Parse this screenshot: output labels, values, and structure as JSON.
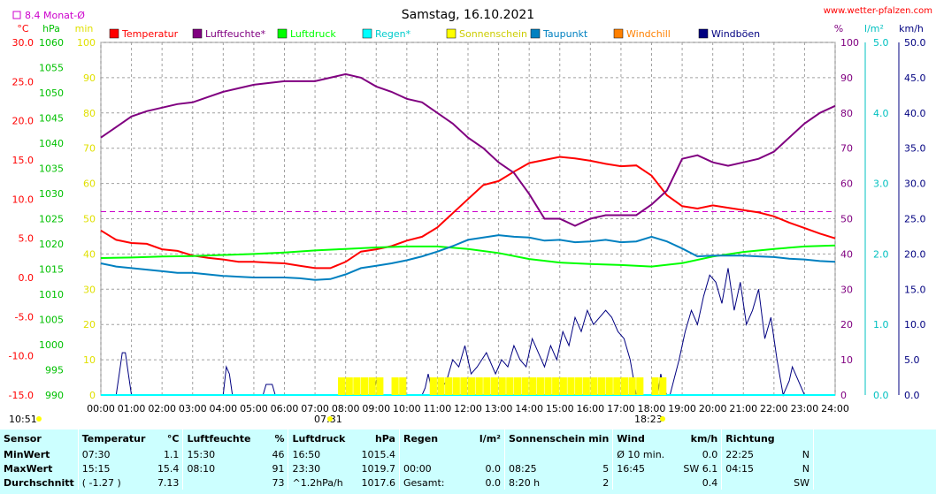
{
  "header": {
    "title": "Samstag, 16.10.2021",
    "site": "www.wetter-pfalzen.com",
    "monthly_avg_label": "8.4 Monat-Ø",
    "time_marker_left": "10:51",
    "sunrise": "07:31",
    "sunset": "18:23"
  },
  "legend": [
    {
      "name": "Temperatur",
      "color": "#ff0000"
    },
    {
      "name": "Luftfeuchte*",
      "color": "#800080"
    },
    {
      "name": "Luftdruck",
      "color": "#00ff00"
    },
    {
      "name": "Regen*",
      "color": "#00ffff"
    },
    {
      "name": "Sonnenschein",
      "color": "#ffff00"
    },
    {
      "name": "Taupunkt",
      "color": "#0080c0"
    },
    {
      "name": "Windchill",
      "color": "#ff8000"
    },
    {
      "name": "Windböen",
      "color": "#000080"
    }
  ],
  "axes": {
    "temp": {
      "unit": "°C",
      "color": "#ff0000",
      "ticks": [
        "30.0",
        "25.0",
        "20.0",
        "15.0",
        "10.0",
        "5.0",
        "0.0",
        "-5.0",
        "-10.0",
        "-15.0"
      ]
    },
    "pressure": {
      "unit": "hPa",
      "color": "#00c000",
      "ticks": [
        "1060",
        "1055",
        "1050",
        "1045",
        "1040",
        "1035",
        "1030",
        "1025",
        "1020",
        "1015",
        "1010",
        "1005",
        "1000",
        "995",
        "990"
      ]
    },
    "sun": {
      "unit": "min",
      "color": "#e0e000",
      "ticks": [
        "100",
        "90",
        "80",
        "70",
        "60",
        "50",
        "40",
        "30",
        "20",
        "10",
        "0"
      ]
    },
    "humidity": {
      "unit": "%",
      "color": "#800080",
      "ticks": [
        "100",
        "90",
        "80",
        "70",
        "60",
        "50",
        "40",
        "30",
        "20",
        "10",
        "0"
      ]
    },
    "rain": {
      "unit": "l/m²",
      "color": "#00c0c0",
      "ticks": [
        "5.0",
        "4.0",
        "3.0",
        "2.0",
        "1.0",
        "0.0"
      ]
    },
    "wind": {
      "unit": "km/h",
      "color": "#000080",
      "ticks": [
        "50.0",
        "45.0",
        "40.0",
        "35.0",
        "30.0",
        "25.0",
        "20.0",
        "15.0",
        "10.0",
        "5.0",
        "0.0"
      ]
    },
    "x_ticks": [
      "00:00",
      "01:00",
      "02:00",
      "03:00",
      "04:00",
      "05:00",
      "06:00",
      "07:00",
      "08:00",
      "09:00",
      "10:00",
      "11:00",
      "12:00",
      "13:00",
      "14:00",
      "15:00",
      "16:00",
      "17:00",
      "18:00",
      "19:00",
      "20:00",
      "21:00",
      "22:00",
      "23:00",
      "24:00"
    ]
  },
  "chart_data": {
    "type": "line",
    "title": "Samstag, 16.10.2021",
    "x_unit": "hours",
    "monthly_avg_temp": 8.4,
    "series": [
      {
        "name": "Temperatur",
        "axis": "temp",
        "color": "#ff0000",
        "x": [
          0,
          0.5,
          1,
          1.5,
          2,
          2.5,
          3,
          3.5,
          4,
          4.5,
          5,
          5.5,
          6,
          6.5,
          7,
          7.5,
          8,
          8.5,
          9,
          9.5,
          10,
          10.5,
          11,
          11.5,
          12,
          12.5,
          13,
          13.5,
          14,
          14.5,
          15,
          15.5,
          16,
          16.5,
          17,
          17.5,
          18,
          18.5,
          19,
          19.5,
          20,
          20.5,
          21,
          21.5,
          22,
          22.5,
          23,
          23.5,
          24
        ],
        "values": [
          6,
          4.8,
          4.4,
          4.3,
          3.6,
          3.4,
          2.8,
          2.5,
          2.3,
          2.0,
          2.0,
          1.9,
          1.8,
          1.5,
          1.2,
          1.2,
          2.0,
          3.3,
          3.6,
          4.0,
          4.7,
          5.2,
          6.4,
          8.2,
          10,
          11.8,
          12.3,
          13.5,
          14.6,
          15.0,
          15.4,
          15.2,
          14.9,
          14.5,
          14.2,
          14.3,
          13.0,
          10.5,
          9.1,
          8.8,
          9.2,
          8.9,
          8.6,
          8.3,
          7.8,
          7.0,
          6.3,
          5.6,
          5.0
        ]
      },
      {
        "name": "Luftfeuchte*",
        "axis": "humidity",
        "color": "#800080",
        "x": [
          0,
          0.5,
          1,
          1.5,
          2,
          2.5,
          3,
          3.5,
          4,
          4.5,
          5,
          5.5,
          6,
          6.5,
          7,
          7.5,
          8,
          8.5,
          9,
          9.5,
          10,
          10.5,
          11,
          11.5,
          12,
          12.5,
          13,
          13.5,
          14,
          14.5,
          15,
          15.5,
          16,
          16.5,
          17,
          17.5,
          18,
          18.5,
          19,
          19.5,
          20,
          20.5,
          21,
          21.5,
          22,
          22.5,
          23,
          23.5,
          24
        ],
        "values": [
          73,
          76,
          79,
          80.5,
          81.5,
          82.5,
          83,
          84.5,
          86,
          87,
          88,
          88.5,
          89,
          89,
          89,
          90,
          91,
          90,
          87.5,
          86,
          84,
          83,
          80,
          77,
          73,
          70,
          66,
          63,
          57,
          50,
          50,
          48,
          50,
          51,
          51,
          51,
          54,
          58,
          67,
          68,
          66,
          65,
          66,
          67,
          69,
          73,
          77,
          80,
          82
        ]
      },
      {
        "name": "Luftdruck",
        "axis": "pressure",
        "color": "#00ff00",
        "x": [
          0,
          1,
          2,
          3,
          4,
          5,
          6,
          7,
          8,
          9,
          10,
          11,
          12,
          13,
          14,
          15,
          16,
          17,
          18,
          19,
          20,
          21,
          22,
          23,
          24
        ],
        "values": [
          1017.2,
          1017.3,
          1017.5,
          1017.6,
          1017.8,
          1018.0,
          1018.3,
          1018.7,
          1019.0,
          1019.3,
          1019.5,
          1019.5,
          1019.0,
          1018.2,
          1017.0,
          1016.3,
          1016.0,
          1015.8,
          1015.5,
          1016.2,
          1017.5,
          1018.4,
          1019.0,
          1019.5,
          1019.7
        ]
      },
      {
        "name": "Taupunkt",
        "axis": "temp",
        "color": "#0080c0",
        "x": [
          0,
          0.5,
          1,
          1.5,
          2,
          2.5,
          3,
          3.5,
          4,
          4.5,
          5,
          5.5,
          6,
          6.5,
          7,
          7.5,
          8,
          8.5,
          9,
          9.5,
          10,
          10.5,
          11,
          11.5,
          12,
          12.5,
          13,
          13.5,
          14,
          14.5,
          15,
          15.5,
          16,
          16.5,
          17,
          17.5,
          18,
          18.5,
          19,
          19.5,
          20,
          20.5,
          21,
          21.5,
          22,
          22.5,
          23,
          23.5,
          24
        ],
        "values": [
          1.8,
          1.4,
          1.2,
          1.0,
          0.8,
          0.6,
          0.6,
          0.4,
          0.2,
          0.1,
          0,
          0,
          0,
          -0.1,
          -0.3,
          -0.2,
          0.4,
          1.2,
          1.5,
          1.8,
          2.2,
          2.7,
          3.3,
          4.0,
          4.8,
          5.1,
          5.4,
          5.2,
          5.1,
          4.7,
          4.8,
          4.5,
          4.6,
          4.8,
          4.5,
          4.6,
          5.2,
          4.6,
          3.7,
          2.7,
          2.8,
          2.8,
          2.8,
          2.7,
          2.6,
          2.4,
          2.3,
          2.1,
          2.0
        ]
      },
      {
        "name": "Windböen",
        "axis": "wind",
        "color": "#000080",
        "x": [
          0,
          0.5,
          0.6,
          0.7,
          0.8,
          0.9,
          1.0,
          4.0,
          4.1,
          4.2,
          4.3,
          5.3,
          5.4,
          5.6,
          5.7,
          8.9,
          9.0,
          9.1,
          9.2,
          10.5,
          10.6,
          10.7,
          10.8,
          11.0,
          11.3,
          11.5,
          11.7,
          11.9,
          12.1,
          12.3,
          12.6,
          12.9,
          13.1,
          13.3,
          13.5,
          13.7,
          13.9,
          14.1,
          14.3,
          14.5,
          14.7,
          14.9,
          15.1,
          15.3,
          15.5,
          15.7,
          15.9,
          16.1,
          16.3,
          16.5,
          16.7,
          16.9,
          17.1,
          17.3,
          17.5,
          17.7,
          18.2,
          18.3,
          18.4,
          18.5,
          18.6,
          18.9,
          19.1,
          19.3,
          19.5,
          19.7,
          19.9,
          20.1,
          20.3,
          20.5,
          20.7,
          20.9,
          21.1,
          21.3,
          21.5,
          21.7,
          21.9,
          22.1,
          22.3,
          22.5,
          22.6,
          23,
          24
        ],
        "values": [
          0,
          0,
          3,
          6,
          6,
          3,
          0,
          0,
          4,
          3,
          0,
          0,
          1.5,
          1.5,
          0,
          0,
          2,
          1,
          0,
          0,
          1,
          3,
          1,
          0,
          2,
          5,
          4,
          7,
          3,
          4,
          6,
          3,
          5,
          4,
          7,
          5,
          4,
          8,
          6,
          4,
          7,
          5,
          9,
          7,
          11,
          9,
          12,
          10,
          11,
          12,
          11,
          9,
          8,
          5,
          0,
          0,
          0,
          3,
          1,
          0,
          0,
          5,
          9,
          12,
          10,
          14,
          17,
          16,
          13,
          18,
          12,
          16,
          10,
          12,
          15,
          8,
          11,
          5,
          0,
          2,
          4,
          0,
          0
        ]
      },
      {
        "name": "Regen*",
        "axis": "rain",
        "color": "#00ffff",
        "x": [
          0,
          24
        ],
        "values": [
          0,
          0
        ]
      },
      {
        "name": "Sonnenschein",
        "axis": "sun",
        "color": "#ffff00",
        "x": [
          7.75,
          8.0,
          8.25,
          8.5,
          8.75,
          9.0,
          9.5,
          9.75,
          10.75,
          11.0,
          11.25,
          11.5,
          11.75,
          12.0,
          12.25,
          12.5,
          12.75,
          13.0,
          13.25,
          13.5,
          13.75,
          14.0,
          14.25,
          14.5,
          14.75,
          15.0,
          15.25,
          15.5,
          15.75,
          16.0,
          16.25,
          16.5,
          16.75,
          17.0,
          17.25,
          17.5,
          18.0,
          18.25
        ],
        "values": [
          5,
          5,
          5,
          5,
          5,
          5,
          5,
          5,
          5,
          5,
          5,
          5,
          5,
          5,
          5,
          5,
          5,
          5,
          5,
          5,
          5,
          5,
          5,
          5,
          5,
          5,
          5,
          5,
          5,
          5,
          5,
          5,
          5,
          5,
          5,
          5,
          5,
          5
        ]
      }
    ]
  },
  "stats": {
    "headers": [
      "Sensor",
      "Temperatur",
      "°C",
      "Luftfeuchte",
      "%",
      "Luftdruck",
      "hPa",
      "Regen",
      "l/m²",
      "Sonnenschein min",
      "Wind",
      "km/h",
      "Richtung"
    ],
    "rows": [
      {
        "label": "MinWert",
        "temp_time": "07:30",
        "temp_val": "1.1",
        "hum_time": "15:30",
        "hum_val": "46",
        "press_time": "16:50",
        "press_val": "1015.4",
        "rain_time": "",
        "rain_val": "",
        "sun_time": "",
        "sun_val": "",
        "wind_label": "Ø 10 min.",
        "wind_val": "0.0",
        "dir_time": "22:25",
        "dir_val": "N"
      },
      {
        "label": "MaxWert",
        "temp_time": "15:15",
        "temp_val": "15.4",
        "hum_time": "08:10",
        "hum_val": "91",
        "press_time": "23:30",
        "press_val": "1019.7",
        "rain_time": "00:00",
        "rain_val": "0.0",
        "sun_time": "08:25",
        "sun_val": "5",
        "wind_label": "16:45",
        "wind_val": "SW 6.1",
        "dir_time": "04:15",
        "dir_val": "N"
      },
      {
        "label": "Durchschnitt",
        "temp_time": "( -1.27 )",
        "temp_val": "7.13",
        "hum_time": "",
        "hum_val": "73",
        "press_time": "^1.2hPa/h",
        "press_val": "1017.6",
        "rain_time": "Gesamt:",
        "rain_val": "0.0",
        "sun_time": "8:20 h",
        "sun_val": "2",
        "wind_label": "",
        "wind_val": "0.4",
        "dir_time": "",
        "dir_val": "SW"
      }
    ]
  }
}
